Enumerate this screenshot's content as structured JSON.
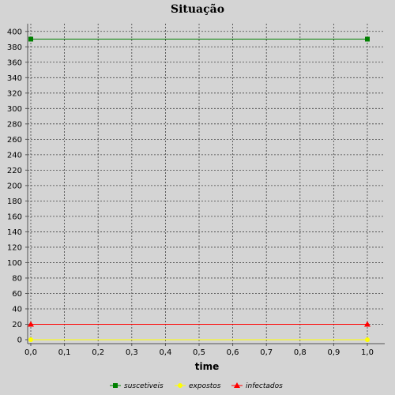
{
  "chart_data": {
    "type": "line",
    "title": "Situação",
    "xlabel": "time",
    "ylabel": "",
    "x": [
      0.0,
      1.0
    ],
    "xlim": [
      0.0,
      1.0
    ],
    "ylim": [
      0,
      410
    ],
    "xticks": [
      0.0,
      0.1,
      0.2,
      0.3,
      0.4,
      0.5,
      0.6,
      0.7,
      0.8,
      0.9,
      1.0
    ],
    "xtick_labels": [
      "0,0",
      "0,1",
      "0,2",
      "0,3",
      "0,4",
      "0,5",
      "0,6",
      "0,7",
      "0,8",
      "0,9",
      "1,0"
    ],
    "yticks": [
      0,
      20,
      40,
      60,
      80,
      100,
      120,
      140,
      160,
      180,
      200,
      220,
      240,
      260,
      280,
      300,
      320,
      340,
      360,
      380,
      400
    ],
    "grid": true,
    "legend_position": "bottom",
    "series": [
      {
        "name": "suscetiveis",
        "values": [
          390,
          390
        ],
        "color": "#008000",
        "marker": "square"
      },
      {
        "name": "expostos",
        "values": [
          0,
          0
        ],
        "color": "#ffff00",
        "marker": "circle"
      },
      {
        "name": "infectados",
        "values": [
          20,
          20
        ],
        "color": "#ff0000",
        "marker": "triangle"
      }
    ]
  }
}
